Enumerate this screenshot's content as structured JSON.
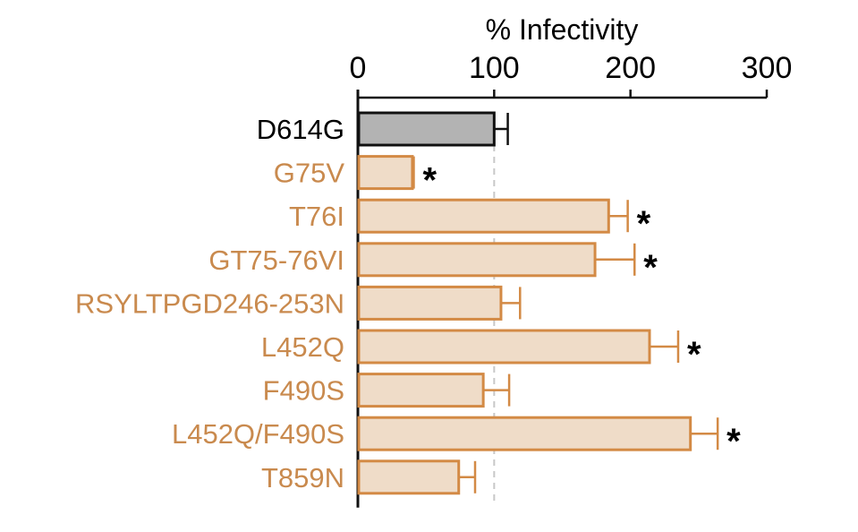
{
  "chart_data": {
    "type": "bar",
    "orientation": "horizontal",
    "title": "% Infectivity",
    "xlabel": "% Infectivity",
    "xlim": [
      0,
      300
    ],
    "xticks": [
      0,
      100,
      200,
      300
    ],
    "reference_line": 100,
    "axis_position": "top",
    "grid": false,
    "categories": [
      "D614G",
      "G75V",
      "T76I",
      "GT75-76VI",
      "RSYLTPGD246-253N",
      "L452Q",
      "F490S",
      "L452Q/F490S",
      "T859N"
    ],
    "values": [
      100,
      40,
      184,
      174,
      105,
      214,
      92,
      244,
      74
    ],
    "errors": [
      10,
      1,
      14,
      29,
      14,
      21,
      19,
      20,
      12
    ],
    "significant": [
      false,
      true,
      true,
      true,
      false,
      true,
      false,
      true,
      false
    ],
    "significance_marker": "*",
    "colors": {
      "control_fill": "#b3b3b3",
      "control_stroke": "#111111",
      "variant_fill": "#efdcc8",
      "variant_stroke": "#d38a45",
      "variant_label": "#c98a4e",
      "control_label": "#000000"
    }
  }
}
